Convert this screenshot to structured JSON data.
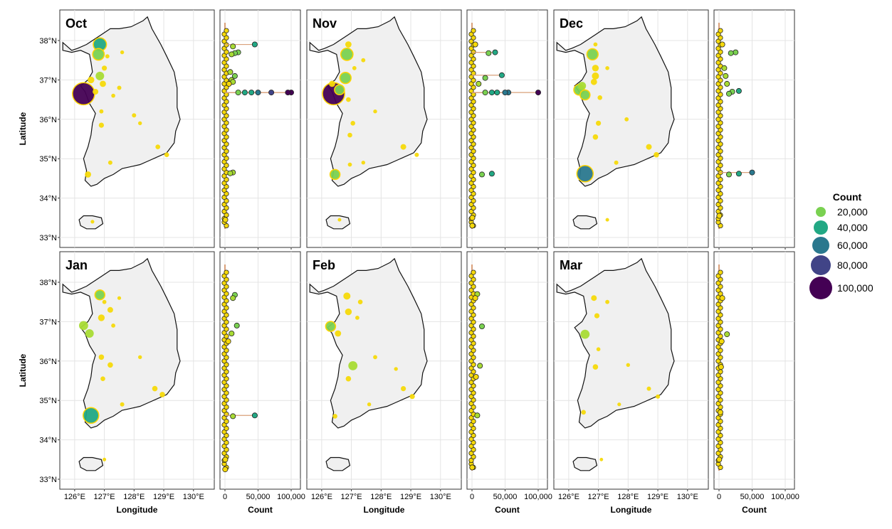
{
  "figure": {
    "y_axis_label": "Latitude",
    "x_axis_label_map": "Longitude",
    "x_axis_label_strip": "Count",
    "lat_ticks": [
      "33°N",
      "34°N",
      "35°N",
      "36°N",
      "37°N",
      "38°N"
    ],
    "lon_ticks": [
      "126°E",
      "127°E",
      "128°E",
      "129°E",
      "130°E"
    ],
    "count_ticks": [
      "0",
      "50,000",
      "100,000"
    ],
    "count_ticks_truncated": [
      "0",
      "50,000",
      "100,000"
    ],
    "panels": [
      "Oct",
      "Nov",
      "Dec",
      "Jan",
      "Feb",
      "Mar"
    ]
  },
  "legend": {
    "title": "Count",
    "entries": [
      "20,000",
      "40,000",
      "60,000",
      "80,000",
      "100,000"
    ],
    "colors": [
      "#7ad151",
      "#22a884",
      "#2a788e",
      "#414487",
      "#440154"
    ]
  },
  "colors": {
    "land": "#f0f0f0",
    "coast": "#111111",
    "grid": "#e4e4e4",
    "small_point": "#f5d90a",
    "strip_line": "#d9a07a"
  },
  "chart_data": [
    {
      "type": "scatter",
      "title": "Oct",
      "xlabel": "Longitude",
      "ylabel": "Latitude",
      "xlim": [
        125.5,
        130.7
      ],
      "ylim": [
        33,
        38.75
      ],
      "points": [
        {
          "lon": 126.3,
          "lat": 36.65,
          "count": 100000
        },
        {
          "lon": 126.85,
          "lat": 37.9,
          "count": 30000
        },
        {
          "lon": 126.8,
          "lat": 37.65,
          "count": 22000
        },
        {
          "lon": 126.85,
          "lat": 37.1,
          "count": 10000
        },
        {
          "lon": 126.55,
          "lat": 37.0,
          "count": 5000
        },
        {
          "lon": 126.45,
          "lat": 34.6,
          "count": 4000
        },
        {
          "lon": 126.95,
          "lat": 36.9,
          "count": 4000
        },
        {
          "lon": 126.7,
          "lat": 36.7,
          "count": 3000
        },
        {
          "lon": 126.9,
          "lat": 35.85,
          "count": 2000
        },
        {
          "lon": 127.0,
          "lat": 37.3,
          "count": 2000
        },
        {
          "lon": 128.8,
          "lat": 35.3,
          "count": 1500
        },
        {
          "lon": 129.1,
          "lat": 35.1,
          "count": 1500
        },
        {
          "lon": 127.5,
          "lat": 36.8,
          "count": 1000
        },
        {
          "lon": 128.0,
          "lat": 36.1,
          "count": 1000
        },
        {
          "lon": 127.2,
          "lat": 34.9,
          "count": 1000
        },
        {
          "lon": 127.1,
          "lat": 37.6,
          "count": 800
        },
        {
          "lon": 126.9,
          "lat": 36.2,
          "count": 800
        },
        {
          "lon": 127.3,
          "lat": 36.6,
          "count": 700
        },
        {
          "lon": 127.6,
          "lat": 37.7,
          "count": 600
        },
        {
          "lon": 128.2,
          "lat": 35.9,
          "count": 600
        },
        {
          "lon": 126.6,
          "lat": 33.4,
          "count": 500
        }
      ],
      "strip": [
        {
          "lat": 37.9,
          "count": 45000
        },
        {
          "lat": 37.85,
          "count": 12000
        },
        {
          "lat": 37.7,
          "count": 20000
        },
        {
          "lat": 37.68,
          "count": 15000
        },
        {
          "lat": 37.65,
          "count": 10000
        },
        {
          "lat": 37.2,
          "count": 8000
        },
        {
          "lat": 37.1,
          "count": 15000
        },
        {
          "lat": 37.0,
          "count": 10000
        },
        {
          "lat": 36.95,
          "count": 12000
        },
        {
          "lat": 36.9,
          "count": 6000
        },
        {
          "lat": 36.68,
          "count": 100000
        },
        {
          "lat": 36.68,
          "count": 95000
        },
        {
          "lat": 36.68,
          "count": 70000
        },
        {
          "lat": 36.68,
          "count": 50000
        },
        {
          "lat": 36.68,
          "count": 40000
        },
        {
          "lat": 36.68,
          "count": 30000
        },
        {
          "lat": 36.68,
          "count": 20000
        },
        {
          "lat": 34.65,
          "count": 12000
        },
        {
          "lat": 34.63,
          "count": 8000
        },
        {
          "lat": 33.45,
          "count": 500
        }
      ]
    },
    {
      "type": "scatter",
      "title": "Nov",
      "xlabel": "Longitude",
      "ylabel": "Latitude",
      "xlim": [
        125.5,
        130.7
      ],
      "ylim": [
        33,
        38.75
      ],
      "points": [
        {
          "lon": 126.4,
          "lat": 36.65,
          "count": 100000
        },
        {
          "lon": 126.85,
          "lat": 37.65,
          "count": 25000
        },
        {
          "lon": 126.8,
          "lat": 37.05,
          "count": 20000
        },
        {
          "lon": 126.6,
          "lat": 36.75,
          "count": 15000
        },
        {
          "lon": 126.45,
          "lat": 34.6,
          "count": 15000
        },
        {
          "lon": 126.9,
          "lat": 37.9,
          "count": 4000
        },
        {
          "lon": 126.35,
          "lat": 36.9,
          "count": 4000
        },
        {
          "lon": 128.75,
          "lat": 35.3,
          "count": 3000
        },
        {
          "lon": 126.9,
          "lat": 36.5,
          "count": 1500
        },
        {
          "lon": 127.05,
          "lat": 35.9,
          "count": 1500
        },
        {
          "lon": 126.95,
          "lat": 35.6,
          "count": 1500
        },
        {
          "lon": 129.2,
          "lat": 35.1,
          "count": 1000
        },
        {
          "lon": 127.4,
          "lat": 37.5,
          "count": 800
        },
        {
          "lon": 127.1,
          "lat": 37.3,
          "count": 800
        },
        {
          "lon": 126.95,
          "lat": 34.85,
          "count": 800
        },
        {
          "lon": 127.8,
          "lat": 36.2,
          "count": 600
        },
        {
          "lon": 127.4,
          "lat": 34.9,
          "count": 600
        },
        {
          "lon": 126.6,
          "lat": 33.45,
          "count": 400
        }
      ],
      "strip": [
        {
          "lat": 37.9,
          "count": 5000
        },
        {
          "lat": 37.7,
          "count": 35000
        },
        {
          "lat": 37.68,
          "count": 25000
        },
        {
          "lat": 37.12,
          "count": 45000
        },
        {
          "lat": 37.05,
          "count": 20000
        },
        {
          "lat": 36.9,
          "count": 10000
        },
        {
          "lat": 36.68,
          "count": 100000
        },
        {
          "lat": 36.68,
          "count": 55000
        },
        {
          "lat": 36.68,
          "count": 50000
        },
        {
          "lat": 36.68,
          "count": 38000
        },
        {
          "lat": 36.68,
          "count": 30000
        },
        {
          "lat": 36.68,
          "count": 20000
        },
        {
          "lat": 34.62,
          "count": 30000
        },
        {
          "lat": 34.6,
          "count": 15000
        },
        {
          "lat": 33.5,
          "count": 500
        },
        {
          "lat": 33.3,
          "count": 400
        }
      ]
    },
    {
      "type": "scatter",
      "title": "Dec",
      "xlabel": "Longitude",
      "ylabel": "Latitude",
      "xlim": [
        125.5,
        130.7
      ],
      "ylim": [
        33,
        38.75
      ],
      "points": [
        {
          "lon": 126.55,
          "lat": 34.62,
          "count": 50000
        },
        {
          "lon": 126.8,
          "lat": 37.65,
          "count": 20000
        },
        {
          "lon": 126.35,
          "lat": 36.75,
          "count": 18000
        },
        {
          "lon": 126.55,
          "lat": 36.62,
          "count": 15000
        },
        {
          "lon": 126.45,
          "lat": 36.85,
          "count": 8000
        },
        {
          "lon": 126.9,
          "lat": 37.1,
          "count": 6000
        },
        {
          "lon": 126.9,
          "lat": 37.3,
          "count": 5000
        },
        {
          "lon": 126.85,
          "lat": 36.95,
          "count": 4000
        },
        {
          "lon": 128.7,
          "lat": 35.3,
          "count": 3000
        },
        {
          "lon": 128.95,
          "lat": 35.1,
          "count": 2500
        },
        {
          "lon": 126.9,
          "lat": 35.55,
          "count": 2500
        },
        {
          "lon": 127.0,
          "lat": 35.9,
          "count": 2000
        },
        {
          "lon": 127.05,
          "lat": 36.55,
          "count": 1500
        },
        {
          "lon": 127.6,
          "lat": 34.9,
          "count": 1000
        },
        {
          "lon": 127.95,
          "lat": 36.0,
          "count": 800
        },
        {
          "lon": 126.9,
          "lat": 37.9,
          "count": 800
        },
        {
          "lon": 127.3,
          "lat": 37.3,
          "count": 700
        },
        {
          "lon": 127.3,
          "lat": 33.45,
          "count": 400
        }
      ],
      "strip": [
        {
          "lat": 37.9,
          "count": 5000
        },
        {
          "lat": 37.7,
          "count": 25000
        },
        {
          "lat": 37.68,
          "count": 18000
        },
        {
          "lat": 37.3,
          "count": 8000
        },
        {
          "lat": 37.1,
          "count": 10000
        },
        {
          "lat": 36.9,
          "count": 12000
        },
        {
          "lat": 36.72,
          "count": 30000
        },
        {
          "lat": 36.7,
          "count": 20000
        },
        {
          "lat": 36.65,
          "count": 15000
        },
        {
          "lat": 34.65,
          "count": 50000
        },
        {
          "lat": 34.62,
          "count": 30000
        },
        {
          "lat": 34.6,
          "count": 15000
        },
        {
          "lat": 33.55,
          "count": 400
        }
      ]
    },
    {
      "type": "scatter",
      "title": "Jan",
      "xlabel": "Longitude",
      "ylabel": "Latitude",
      "xlim": [
        125.5,
        130.7
      ],
      "ylim": [
        33,
        38.75
      ],
      "points": [
        {
          "lon": 126.55,
          "lat": 34.62,
          "count": 45000
        },
        {
          "lon": 126.85,
          "lat": 37.68,
          "count": 15000
        },
        {
          "lon": 126.3,
          "lat": 36.9,
          "count": 12000
        },
        {
          "lon": 126.5,
          "lat": 36.7,
          "count": 10000
        },
        {
          "lon": 126.9,
          "lat": 37.1,
          "count": 5000
        },
        {
          "lon": 127.2,
          "lat": 37.3,
          "count": 3000
        },
        {
          "lon": 126.9,
          "lat": 36.1,
          "count": 2500
        },
        {
          "lon": 127.2,
          "lat": 35.9,
          "count": 2500
        },
        {
          "lon": 128.7,
          "lat": 35.3,
          "count": 2500
        },
        {
          "lon": 128.95,
          "lat": 35.15,
          "count": 2500
        },
        {
          "lon": 126.95,
          "lat": 35.55,
          "count": 1500
        },
        {
          "lon": 127.6,
          "lat": 34.9,
          "count": 1000
        },
        {
          "lon": 127.3,
          "lat": 36.9,
          "count": 800
        },
        {
          "lon": 127.0,
          "lat": 37.5,
          "count": 800
        },
        {
          "lon": 128.2,
          "lat": 36.1,
          "count": 600
        },
        {
          "lon": 127.5,
          "lat": 37.6,
          "count": 500
        },
        {
          "lon": 127.0,
          "lat": 33.5,
          "count": 400
        }
      ],
      "strip": [
        {
          "lat": 37.68,
          "count": 15000
        },
        {
          "lat": 37.6,
          "count": 12000
        },
        {
          "lat": 36.9,
          "count": 18000
        },
        {
          "lat": 36.7,
          "count": 10000
        },
        {
          "lat": 36.5,
          "count": 5000
        },
        {
          "lat": 34.62,
          "count": 45000
        },
        {
          "lat": 34.6,
          "count": 12000
        },
        {
          "lat": 33.5,
          "count": 400
        },
        {
          "lat": 33.25,
          "count": 300
        }
      ]
    },
    {
      "type": "scatter",
      "title": "Feb",
      "xlabel": "Longitude",
      "ylabel": "Latitude",
      "xlim": [
        125.5,
        130.7
      ],
      "ylim": [
        33,
        38.75
      ],
      "points": [
        {
          "lon": 126.3,
          "lat": 36.88,
          "count": 15000
        },
        {
          "lon": 127.05,
          "lat": 35.88,
          "count": 12000
        },
        {
          "lon": 126.85,
          "lat": 37.65,
          "count": 6000
        },
        {
          "lon": 126.9,
          "lat": 37.25,
          "count": 5000
        },
        {
          "lon": 126.55,
          "lat": 36.7,
          "count": 4000
        },
        {
          "lon": 126.9,
          "lat": 35.55,
          "count": 2500
        },
        {
          "lon": 128.75,
          "lat": 35.3,
          "count": 2000
        },
        {
          "lon": 129.05,
          "lat": 35.1,
          "count": 2000
        },
        {
          "lon": 127.3,
          "lat": 37.5,
          "count": 1500
        },
        {
          "lon": 126.45,
          "lat": 34.6,
          "count": 1500
        },
        {
          "lon": 127.8,
          "lat": 36.1,
          "count": 800
        },
        {
          "lon": 127.2,
          "lat": 37.1,
          "count": 800
        },
        {
          "lon": 128.5,
          "lat": 35.8,
          "count": 600
        },
        {
          "lon": 127.6,
          "lat": 34.9,
          "count": 600
        }
      ],
      "strip": [
        {
          "lat": 37.7,
          "count": 8000
        },
        {
          "lat": 37.6,
          "count": 5000
        },
        {
          "lat": 36.88,
          "count": 15000
        },
        {
          "lat": 35.88,
          "count": 12000
        },
        {
          "lat": 35.6,
          "count": 6000
        },
        {
          "lat": 34.62,
          "count": 8000
        },
        {
          "lat": 33.3,
          "count": 300
        }
      ]
    },
    {
      "type": "scatter",
      "title": "Mar",
      "xlabel": "Longitude",
      "ylabel": "Latitude",
      "xlim": [
        125.5,
        130.7
      ],
      "ylim": [
        33,
        38.75
      ],
      "points": [
        {
          "lon": 126.55,
          "lat": 36.68,
          "count": 12000
        },
        {
          "lon": 126.85,
          "lat": 37.6,
          "count": 3000
        },
        {
          "lon": 126.9,
          "lat": 35.85,
          "count": 2500
        },
        {
          "lon": 126.95,
          "lat": 37.15,
          "count": 2000
        },
        {
          "lon": 126.5,
          "lat": 34.7,
          "count": 1500
        },
        {
          "lon": 128.7,
          "lat": 35.3,
          "count": 1000
        },
        {
          "lon": 129.0,
          "lat": 35.1,
          "count": 1000
        },
        {
          "lon": 127.3,
          "lat": 37.5,
          "count": 800
        },
        {
          "lon": 127.0,
          "lat": 36.3,
          "count": 700
        },
        {
          "lon": 128.0,
          "lat": 35.9,
          "count": 600
        },
        {
          "lon": 127.7,
          "lat": 34.9,
          "count": 500
        },
        {
          "lon": 127.1,
          "lat": 33.5,
          "count": 300
        }
      ],
      "strip": [
        {
          "lat": 37.6,
          "count": 5000
        },
        {
          "lat": 36.68,
          "count": 12000
        },
        {
          "lat": 36.5,
          "count": 4000
        },
        {
          "lat": 35.85,
          "count": 3000
        },
        {
          "lat": 34.7,
          "count": 2000
        },
        {
          "lat": 33.5,
          "count": 300
        }
      ]
    }
  ]
}
